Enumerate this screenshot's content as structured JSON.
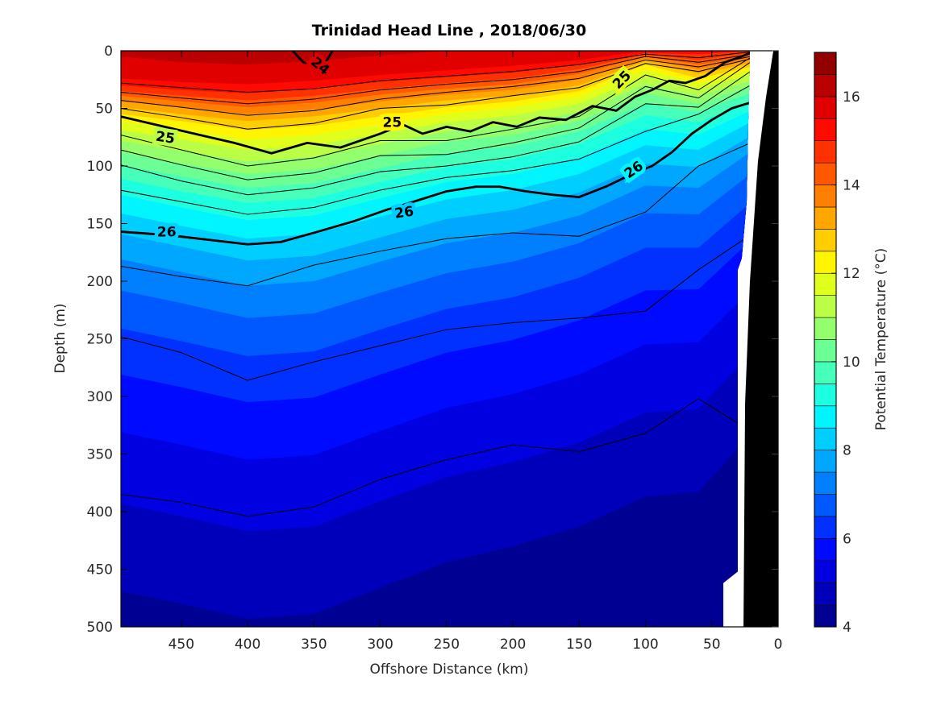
{
  "title": "Trinidad Head Line , 2018/06/30",
  "axes": {
    "x": {
      "label": "Offshore Distance (km)",
      "ticks": [
        450,
        400,
        350,
        300,
        250,
        200,
        150,
        100,
        50,
        0
      ],
      "range": [
        495.5,
        0
      ],
      "reversed": true
    },
    "y": {
      "label": "Depth (m)",
      "ticks": [
        0,
        50,
        100,
        150,
        200,
        250,
        300,
        350,
        400,
        450,
        500
      ],
      "range": [
        0,
        500
      ]
    }
  },
  "colorbar": {
    "label": "Potential Temperature (°C)",
    "ticks": [
      4,
      6,
      8,
      10,
      12,
      14,
      16
    ],
    "range": [
      4,
      17
    ],
    "level_step": 0.5,
    "colors": [
      "#000093",
      "#0000BA",
      "#0000E1",
      "#000AFF",
      "#0031FF",
      "#0058FF",
      "#0080FF",
      "#00A7FF",
      "#00CEFF",
      "#00F5FF",
      "#1DFFE1",
      "#45FFBA",
      "#6CFF93",
      "#93FF6C",
      "#BAFF45",
      "#E1FF1D",
      "#FFF500",
      "#FFCE00",
      "#FFA700",
      "#FF8000",
      "#FF5800",
      "#FF3100",
      "#FF0A00",
      "#E10000",
      "#BA0000",
      "#930000"
    ]
  },
  "chart_data": {
    "type": "filled_contour",
    "title": "Trinidad Head Line , 2018/06/30",
    "xlabel": "Offshore Distance (km)",
    "ylabel": "Depth (m)",
    "zlabel": "Potential Temperature (°C)",
    "x_km": [
      496,
      450,
      400,
      350,
      300,
      250,
      200,
      150,
      100,
      60,
      21
    ],
    "isotherms": [
      {
        "temp": 4.5,
        "depths": [
          469,
          480,
          493,
          489,
          466,
          444,
          430,
          413,
          387,
          383,
          333
        ]
      },
      {
        "temp": 5.0,
        "depths": [
          393,
          404,
          417,
          413,
          391,
          370,
          357,
          340,
          314,
          311,
          263
        ]
      },
      {
        "temp": 5.5,
        "depths": [
          331,
          342,
          355,
          351,
          330,
          310,
          298,
          281,
          255,
          253,
          208
        ]
      },
      {
        "temp": 6.0,
        "depths": [
          281,
          292,
          305,
          301,
          281,
          262,
          251,
          234,
          208,
          207,
          165
        ]
      },
      {
        "temp": 6.5,
        "depths": [
          241,
          252,
          265,
          261,
          242,
          224,
          214,
          197,
          171,
          171,
          132
        ]
      },
      {
        "temp": 7.0,
        "depths": [
          208,
          219,
          232,
          228,
          210,
          193,
          183,
          167,
          141,
          142,
          107
        ]
      },
      {
        "temp": 7.5,
        "depths": [
          181,
          192,
          204,
          200,
          183,
          167,
          158,
          143,
          117,
          119,
          88
        ]
      },
      {
        "temp": 8.0,
        "depths": [
          159,
          170,
          182,
          178,
          162,
          146,
          138,
          123,
          98,
          101,
          74
        ]
      },
      {
        "temp": 8.5,
        "depths": [
          141,
          152,
          163,
          159,
          144,
          129,
          121,
          107,
          82,
          86,
          62
        ]
      },
      {
        "temp": 9.0,
        "depths": [
          125,
          136,
          147,
          143,
          128,
          114,
          107,
          93,
          68,
          73,
          52
        ]
      },
      {
        "temp": 9.5,
        "depths": [
          111,
          122,
          132,
          128,
          114,
          101,
          94,
          81,
          56,
          62,
          44
        ]
      },
      {
        "temp": 10.0,
        "depths": [
          99,
          109,
          119,
          115,
          102,
          89,
          83,
          70,
          46,
          53,
          37
        ]
      },
      {
        "temp": 10.5,
        "depths": [
          88,
          98,
          107,
          103,
          91,
          79,
          73,
          61,
          37,
          46,
          31
        ]
      },
      {
        "temp": 11.0,
        "depths": [
          78,
          87,
          96,
          92,
          81,
          70,
          64,
          53,
          29,
          39,
          26
        ]
      },
      {
        "temp": 11.5,
        "depths": [
          69,
          77,
          86,
          82,
          72,
          62,
          56,
          46,
          22,
          33,
          21
        ]
      },
      {
        "temp": 12.0,
        "depths": [
          61,
          68,
          77,
          73,
          64,
          55,
          49,
          40,
          16,
          28,
          17
        ]
      },
      {
        "temp": 12.5,
        "depths": [
          55,
          61,
          69,
          65,
          57,
          49,
          44,
          35,
          12,
          24,
          14
        ]
      },
      {
        "temp": 13.0,
        "depths": [
          49,
          55,
          61,
          57,
          50,
          43,
          39,
          30,
          9,
          20,
          11
        ]
      },
      {
        "temp": 13.5,
        "depths": [
          44,
          49,
          55,
          51,
          44,
          38,
          34,
          25,
          7,
          16,
          8
        ]
      },
      {
        "temp": 14.0,
        "depths": [
          39,
          44,
          49,
          45,
          38,
          33,
          29,
          20,
          5,
          12,
          5
        ]
      },
      {
        "temp": 14.5,
        "depths": [
          35,
          39,
          43,
          39,
          33,
          28,
          24,
          16,
          3,
          8,
          2
        ]
      },
      {
        "temp": 15.0,
        "depths": [
          30,
          34,
          37,
          33,
          27,
          23,
          19,
          12,
          2,
          3,
          0
        ]
      },
      {
        "temp": 15.5,
        "depths": [
          24,
          27,
          29,
          26,
          21,
          17,
          13,
          8,
          0,
          0,
          0
        ]
      },
      {
        "temp": 16.0,
        "depths": [
          5,
          10,
          12,
          9,
          4,
          0,
          0,
          0,
          0,
          0,
          0
        ]
      }
    ],
    "density_contours": [
      {
        "level": 24.2,
        "bold": false,
        "depths": [
          28,
          32,
          36,
          33,
          26,
          22,
          18,
          12,
          3,
          6,
          1
        ]
      },
      {
        "level": 24.4,
        "bold": false,
        "depths": [
          36,
          41,
          46,
          42,
          34,
          29,
          25,
          18,
          5,
          10,
          3
        ]
      },
      {
        "level": 24.6,
        "bold": false,
        "depths": [
          43,
          49,
          56,
          52,
          42,
          36,
          31,
          24,
          8,
          14,
          5
        ]
      },
      {
        "level": 24.8,
        "bold": false,
        "depths": [
          50,
          58,
          68,
          63,
          50,
          47,
          39,
          32,
          11,
          18,
          7
        ]
      },
      {
        "level": 25.2,
        "bold": false,
        "depths": [
          73,
          86,
          100,
          93,
          78,
          78,
          68,
          57,
          21,
          34,
          6
        ]
      },
      {
        "level": 25.4,
        "bold": false,
        "depths": [
          86,
          99,
          112,
          106,
          91,
          90,
          80,
          67,
          31,
          41,
          10
        ]
      },
      {
        "level": 25.6,
        "bold": false,
        "depths": [
          99,
          113,
          125,
          119,
          105,
          100,
          92,
          79,
          46,
          49,
          18
        ]
      },
      {
        "level": 25.8,
        "bold": false,
        "depths": [
          121,
          131,
          142,
          136,
          121,
          110,
          104,
          94,
          70,
          55,
          30
        ]
      },
      {
        "level": 26.2,
        "bold": false,
        "depths": [
          187,
          196,
          204,
          186,
          174,
          163,
          158,
          161,
          140,
          100,
          80
        ]
      },
      {
        "level": 26.4,
        "bold": false,
        "depths": [
          248,
          262,
          286,
          270,
          256,
          242,
          236,
          232,
          226,
          190,
          160
        ]
      },
      {
        "level": 26.6,
        "bold": false,
        "depths": [
          385,
          392,
          404,
          396,
          372,
          355,
          342,
          348,
          332,
          302,
          330
        ]
      },
      {
        "level": 24,
        "bold": true,
        "x_km": [
          366,
          358,
          348,
          340,
          336
        ],
        "depths": [
          0,
          10,
          13,
          8,
          0
        ]
      },
      {
        "level": 25,
        "bold": true,
        "x_km": [
          496,
          455,
          410,
          382,
          355,
          330,
          300,
          283,
          268,
          250,
          232,
          215,
          197,
          180,
          160,
          140,
          122,
          108,
          95,
          82,
          70,
          55,
          40,
          30,
          21
        ],
        "depths": [
          57,
          68,
          80,
          89,
          80,
          84,
          72,
          64,
          72,
          66,
          70,
          62,
          66,
          58,
          60,
          48,
          52,
          40,
          34,
          26,
          28,
          22,
          10,
          6,
          2
        ]
      },
      {
        "level": 26,
        "bold": true,
        "x_km": [
          496,
          460,
          430,
          400,
          375,
          350,
          320,
          295,
          272,
          250,
          228,
          210,
          190,
          170,
          150,
          130,
          112,
          95,
          80,
          65,
          50,
          35,
          21
        ],
        "depths": [
          157,
          160,
          164,
          168,
          166,
          158,
          148,
          138,
          130,
          122,
          118,
          118,
          122,
          125,
          127,
          118,
          108,
          100,
          88,
          72,
          60,
          50,
          45
        ]
      }
    ],
    "contour_labels": [
      {
        "text": "24",
        "km": 345,
        "depth": 13,
        "rot": 40,
        "halo": "#E10000"
      },
      {
        "text": "25",
        "km": 462,
        "depth": 75,
        "rot": 8,
        "halo": "#BAFF45"
      },
      {
        "text": "25",
        "km": 291,
        "depth": 62,
        "rot": 0,
        "halo": "#FFF500"
      },
      {
        "text": "25",
        "km": 118,
        "depth": 25,
        "rot": -45,
        "halo": "#E1FF1D"
      },
      {
        "text": "26",
        "km": 461,
        "depth": 157,
        "rot": 0,
        "halo": "#00CEFF"
      },
      {
        "text": "26",
        "km": 282,
        "depth": 140,
        "rot": -8,
        "halo": "#00CEFF"
      },
      {
        "text": "26",
        "km": 109,
        "depth": 103,
        "rot": -35,
        "halo": "#00F5FF"
      }
    ],
    "data_edge": [
      {
        "km": 21.3,
        "d": 0
      },
      {
        "km": 21.5,
        "d": 19
      },
      {
        "km": 22.5,
        "d": 61
      },
      {
        "km": 23.7,
        "d": 131
      },
      {
        "km": 27.4,
        "d": 180
      },
      {
        "km": 30.4,
        "d": 190
      },
      {
        "km": 30.4,
        "d": 452
      },
      {
        "km": 41.3,
        "d": 462
      },
      {
        "km": 41.3,
        "d": 500
      }
    ],
    "coast_mask": [
      {
        "km": 3.6,
        "d": 0
      },
      {
        "km": 0,
        "d": 0
      },
      {
        "km": 0,
        "d": 500
      },
      {
        "km": 26.1,
        "d": 500
      },
      {
        "km": 24.9,
        "d": 306
      },
      {
        "km": 21.3,
        "d": 201
      },
      {
        "km": 15.2,
        "d": 96
      },
      {
        "km": 9.1,
        "d": 40
      }
    ]
  }
}
